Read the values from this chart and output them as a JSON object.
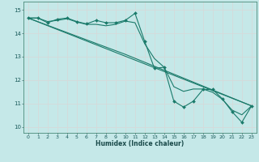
{
  "title": "",
  "xlabel": "Humidex (Indice chaleur)",
  "ylabel": "",
  "bg_color": "#c5e8e8",
  "grid_color": "#d8d8d8",
  "line_color": "#1a7a6a",
  "xlim": [
    -0.5,
    23.5
  ],
  "ylim": [
    9.75,
    15.35
  ],
  "xticks": [
    0,
    1,
    2,
    3,
    4,
    5,
    6,
    7,
    8,
    9,
    10,
    11,
    12,
    13,
    14,
    15,
    16,
    17,
    18,
    19,
    20,
    21,
    22,
    23
  ],
  "yticks": [
    10,
    11,
    12,
    13,
    14,
    15
  ],
  "series": [
    {
      "x": [
        0,
        1,
        2,
        3,
        4,
        5,
        6,
        7,
        8,
        9,
        10,
        11,
        12,
        13,
        14,
        15,
        16,
        17,
        18,
        19,
        20,
        21,
        22,
        23
      ],
      "y": [
        14.65,
        14.65,
        14.45,
        14.6,
        14.65,
        14.5,
        14.4,
        14.55,
        14.45,
        14.45,
        14.55,
        14.85,
        13.65,
        12.5,
        12.55,
        11.1,
        10.85,
        11.1,
        11.6,
        11.6,
        11.2,
        10.65,
        10.2,
        10.9
      ],
      "marker": true
    },
    {
      "x": [
        0,
        1,
        2,
        3,
        4,
        5,
        6,
        7,
        8,
        9,
        10,
        11,
        12,
        13,
        14,
        15,
        16,
        17,
        18,
        19,
        20,
        21,
        22,
        23
      ],
      "y": [
        14.65,
        14.65,
        14.5,
        14.55,
        14.62,
        14.48,
        14.38,
        14.38,
        14.32,
        14.38,
        14.52,
        14.45,
        13.55,
        12.92,
        12.55,
        11.72,
        11.52,
        11.62,
        11.62,
        11.48,
        11.18,
        10.72,
        10.52,
        10.9
      ],
      "marker": false
    },
    {
      "x": [
        0,
        23
      ],
      "y": [
        14.65,
        10.9
      ],
      "marker": false
    },
    {
      "x": [
        0,
        10,
        23
      ],
      "y": [
        14.65,
        13.1,
        10.9
      ],
      "marker": false
    }
  ]
}
